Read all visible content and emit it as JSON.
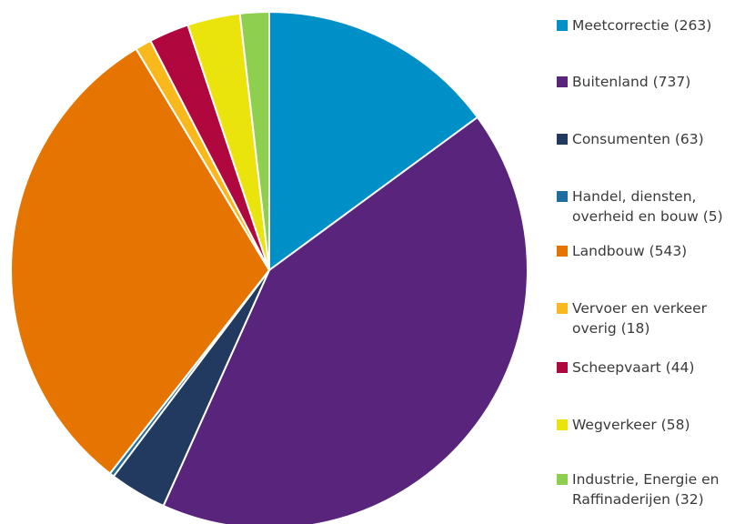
{
  "chart_data": {
    "type": "pie",
    "slices": [
      {
        "label": "Meetcorrectie (263)",
        "value": 263,
        "color": "#0090c8"
      },
      {
        "label": "Buitenland (737)",
        "value": 737,
        "color": "#58247c"
      },
      {
        "label": "Consumenten (63)",
        "value": 63,
        "color": "#223a60"
      },
      {
        "label": "Handel, diensten,\noverheid en bouw (5)",
        "value": 5,
        "color": "#1f6f9e"
      },
      {
        "label": "Landbouw  (543)",
        "value": 543,
        "color": "#e57500"
      },
      {
        "label": "Vervoer en verkeer\noverig (18)",
        "value": 18,
        "color": "#f9b81c"
      },
      {
        "label": "Scheepvaart (44)",
        "value": 44,
        "color": "#b0083e"
      },
      {
        "label": "Wegverkeer (58)",
        "value": 58,
        "color": "#eae30c"
      },
      {
        "label": "Industrie, Energie en\nRaffinaderijen (32)",
        "value": 32,
        "color": "#8fcf50"
      }
    ],
    "start": "12 o'clock",
    "direction": "clockwise",
    "legend_position": "right"
  }
}
